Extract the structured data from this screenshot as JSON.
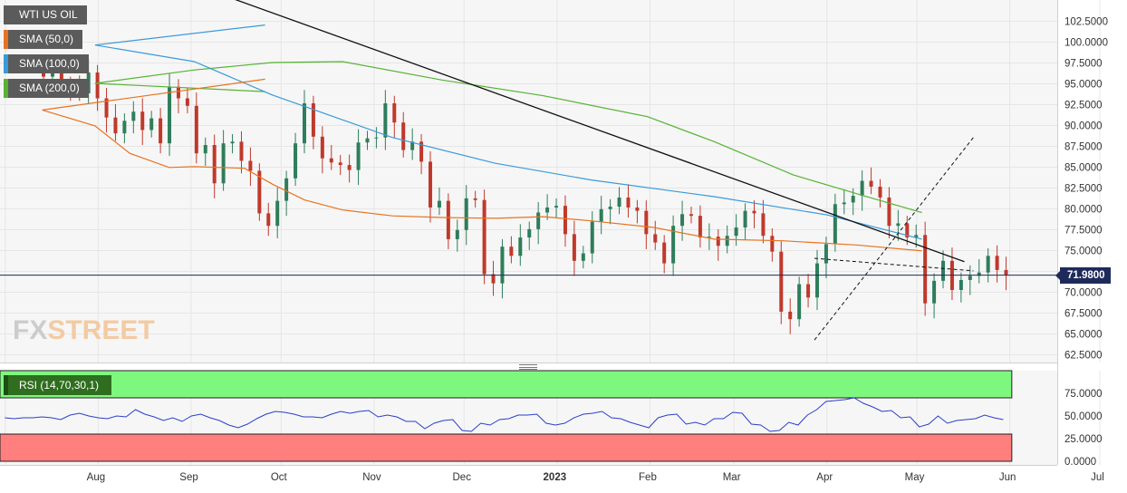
{
  "legend": {
    "instrument": "WTI US OIL",
    "sma50": "SMA (50,0)",
    "sma100": "SMA (100,0)",
    "sma200": "SMA (200,0)",
    "rsi": "RSI (14,70,30,1)"
  },
  "watermark": {
    "part1": "FX",
    "part2": "STREET"
  },
  "last_price": "71.9800",
  "colors": {
    "up_candle": "#2e7d5b",
    "down_candle": "#c0392b",
    "sma50": "#e8731f",
    "sma100": "#3a9ad9",
    "sma200": "#56b334",
    "price_line": "#1e2b5a",
    "rsi_line": "#2a3fc9",
    "rsi_overbought_zone": "#7ef77e",
    "rsi_oversold_zone": "#ff7f7f",
    "grid": "#e6e6e6"
  },
  "chart_data": [
    {
      "type": "candlestick",
      "title": "WTI US OIL",
      "ylim": [
        61.5,
        105
      ],
      "y_ticks": [
        "102.5000",
        "100.0000",
        "97.5000",
        "95.0000",
        "92.5000",
        "90.0000",
        "87.5000",
        "85.0000",
        "82.5000",
        "80.0000",
        "77.5000",
        "75.0000",
        "72.5000",
        "70.0000",
        "67.5000",
        "65.0000",
        "62.5000"
      ],
      "x_ticks": [
        "Aug",
        "Sep",
        "Oct",
        "Nov",
        "Dec",
        "2023",
        "Feb",
        "Mar",
        "Apr",
        "May",
        "Jun",
        "Jul"
      ],
      "close_series": [
        [
          "2022-07-13",
          95.8
        ],
        [
          "2022-07-16",
          96.2
        ],
        [
          "2022-07-19",
          94.9
        ],
        [
          "2022-07-22",
          94.7
        ],
        [
          "2022-07-25",
          93.8
        ],
        [
          "2022-07-28",
          96.3
        ],
        [
          "2022-07-31",
          93.2
        ],
        [
          "2022-08-03",
          90.9
        ],
        [
          "2022-08-06",
          89.0
        ],
        [
          "2022-08-09",
          90.5
        ],
        [
          "2022-08-12",
          91.6
        ],
        [
          "2022-08-15",
          89.4
        ],
        [
          "2022-08-18",
          90.8
        ],
        [
          "2022-08-21",
          87.8
        ],
        [
          "2022-08-24",
          94.6
        ],
        [
          "2022-08-27",
          93.2
        ],
        [
          "2022-08-30",
          92.3
        ],
        [
          "2022-09-02",
          86.6
        ],
        [
          "2022-09-05",
          87.6
        ],
        [
          "2022-09-08",
          83.0
        ],
        [
          "2022-09-11",
          87.8
        ],
        [
          "2022-09-14",
          88.0
        ],
        [
          "2022-09-17",
          85.7
        ],
        [
          "2022-09-20",
          84.5
        ],
        [
          "2022-09-23",
          79.4
        ],
        [
          "2022-09-26",
          77.9
        ],
        [
          "2022-09-29",
          80.9
        ],
        [
          "2022-10-02",
          83.6
        ],
        [
          "2022-10-05",
          87.8
        ],
        [
          "2022-10-08",
          92.6
        ],
        [
          "2022-10-11",
          88.6
        ],
        [
          "2022-10-14",
          86.0
        ],
        [
          "2022-10-17",
          85.5
        ],
        [
          "2022-10-20",
          85.2
        ],
        [
          "2022-10-23",
          84.6
        ],
        [
          "2022-10-26",
          87.9
        ],
        [
          "2022-10-29",
          88.4
        ],
        [
          "2022-11-01",
          88.5
        ],
        [
          "2022-11-04",
          92.6
        ],
        [
          "2022-11-07",
          90.3
        ],
        [
          "2022-11-10",
          87.0
        ],
        [
          "2022-11-13",
          88.0
        ],
        [
          "2022-11-16",
          85.6
        ],
        [
          "2022-11-19",
          80.1
        ],
        [
          "2022-11-22",
          80.9
        ],
        [
          "2022-11-25",
          76.3
        ],
        [
          "2022-11-28",
          77.4
        ],
        [
          "2022-12-01",
          81.2
        ],
        [
          "2022-12-04",
          81.0
        ],
        [
          "2022-12-07",
          72.1
        ],
        [
          "2022-12-10",
          71.0
        ],
        [
          "2022-12-13",
          75.4
        ],
        [
          "2022-12-16",
          74.3
        ],
        [
          "2022-12-19",
          76.5
        ],
        [
          "2022-12-22",
          77.5
        ],
        [
          "2022-12-25",
          79.5
        ],
        [
          "2022-12-28",
          80.1
        ],
        [
          "2022-12-31",
          80.3
        ],
        [
          "2023-01-03",
          76.9
        ],
        [
          "2023-01-06",
          73.7
        ],
        [
          "2023-01-09",
          74.6
        ],
        [
          "2023-01-12",
          78.4
        ],
        [
          "2023-01-15",
          79.9
        ],
        [
          "2023-01-18",
          80.2
        ],
        [
          "2023-01-21",
          81.3
        ],
        [
          "2023-01-24",
          80.1
        ],
        [
          "2023-01-27",
          79.7
        ],
        [
          "2023-01-30",
          76.9
        ],
        [
          "2023-02-02",
          75.9
        ],
        [
          "2023-02-05",
          73.4
        ],
        [
          "2023-02-08",
          77.9
        ],
        [
          "2023-02-11",
          79.3
        ],
        [
          "2023-02-14",
          79.1
        ],
        [
          "2023-02-17",
          76.5
        ],
        [
          "2023-02-20",
          76.6
        ],
        [
          "2023-02-23",
          75.5
        ],
        [
          "2023-02-26",
          76.7
        ],
        [
          "2023-03-01",
          77.7
        ],
        [
          "2023-03-04",
          79.7
        ],
        [
          "2023-03-07",
          79.4
        ],
        [
          "2023-03-10",
          76.7
        ],
        [
          "2023-03-13",
          74.8
        ],
        [
          "2023-03-16",
          67.6
        ],
        [
          "2023-03-19",
          66.7
        ],
        [
          "2023-03-22",
          70.9
        ],
        [
          "2023-03-25",
          69.3
        ],
        [
          "2023-03-28",
          73.4
        ],
        [
          "2023-03-31",
          75.7
        ],
        [
          "2023-04-03",
          80.5
        ],
        [
          "2023-04-06",
          80.7
        ],
        [
          "2023-04-09",
          81.5
        ],
        [
          "2023-04-12",
          83.3
        ],
        [
          "2023-04-15",
          82.6
        ],
        [
          "2023-04-18",
          81.3
        ],
        [
          "2023-04-21",
          77.9
        ],
        [
          "2023-04-24",
          78.2
        ],
        [
          "2023-04-27",
          76.5
        ],
        [
          "2023-04-30",
          76.8
        ],
        [
          "2023-05-03",
          68.6
        ],
        [
          "2023-05-06",
          71.3
        ],
        [
          "2023-05-09",
          73.7
        ],
        [
          "2023-05-12",
          70.2
        ],
        [
          "2023-05-15",
          71.4
        ],
        [
          "2023-05-18",
          71.9
        ],
        [
          "2023-05-21",
          72.3
        ],
        [
          "2023-05-24",
          74.3
        ],
        [
          "2023-05-27",
          72.6
        ],
        [
          "2023-05-30",
          71.98
        ]
      ],
      "sma50": [
        [
          86.8,
          95.5
        ],
        [
          12.5,
          91.8
        ],
        [
          30.1,
          89.9
        ],
        [
          41.7,
          86.6
        ],
        [
          54.8,
          84.9
        ],
        [
          63.2,
          85.0
        ],
        [
          80.0,
          84.8
        ],
        [
          89.2,
          82.9
        ],
        [
          100.0,
          81.0
        ],
        [
          112.7,
          79.8
        ],
        [
          129.2,
          79.1
        ],
        [
          145.8,
          78.9
        ],
        [
          163.6,
          78.8
        ],
        [
          179.7,
          79.0
        ],
        [
          195.6,
          78.5
        ],
        [
          216.5,
          77.7
        ],
        [
          236.6,
          76.3
        ],
        [
          259.5,
          76.1
        ],
        [
          283.9,
          75.6
        ],
        [
          305.8,
          74.9
        ]
      ],
      "sma100": [
        [
          86.8,
          102.0
        ],
        [
          30.1,
          99.6
        ],
        [
          63.2,
          97.6
        ],
        [
          89.2,
          93.6
        ],
        [
          129.2,
          88.5
        ],
        [
          163.6,
          85.4
        ],
        [
          195.6,
          83.4
        ],
        [
          236.6,
          81.4
        ],
        [
          274.3,
          79.2
        ],
        [
          305.8,
          76.3
        ]
      ],
      "sma200": [
        [
          86.8,
          94.0
        ],
        [
          30.1,
          95.0
        ],
        [
          63.2,
          96.6
        ],
        [
          89.2,
          97.5
        ],
        [
          112.7,
          97.6
        ],
        [
          145.8,
          95.4
        ],
        [
          179.7,
          93.5
        ],
        [
          214.3,
          91.0
        ],
        [
          236.6,
          88.0
        ],
        [
          263.0,
          84.0
        ],
        [
          285.6,
          81.6
        ],
        [
          305.8,
          79.5
        ]
      ],
      "trendlines": [
        {
          "name": "long-term resistance",
          "style": "solid",
          "x": [
            0.0,
            320.0
          ],
          "y": [
            115.0,
            73.6
          ]
        },
        {
          "name": "triangle upper",
          "style": "dashed",
          "x": [
            270.0,
            323.0
          ],
          "y": [
            74.0,
            72.5
          ]
        },
        {
          "name": "triangle lower",
          "style": "dashed",
          "x": [
            270.0,
            323.0
          ],
          "y": [
            64.2,
            88.5
          ]
        }
      ]
    },
    {
      "type": "line",
      "title": "RSI (14,70,30,1)",
      "ylim": [
        0,
        100
      ],
      "y_ticks": [
        "75.0000",
        "50.0000",
        "25.0000",
        "0.0000"
      ],
      "overbought": 70,
      "oversold": 30,
      "values": [
        48,
        47,
        48,
        48,
        49,
        48,
        46,
        51,
        53,
        50,
        48,
        47,
        50,
        49,
        57,
        52,
        49,
        45,
        48,
        44,
        50,
        52,
        48,
        45,
        40,
        37,
        41,
        47,
        52,
        55,
        54,
        52,
        49,
        49,
        48,
        52,
        55,
        53,
        55,
        56,
        49,
        51,
        49,
        44,
        44,
        36,
        42,
        45,
        46,
        34,
        33,
        42,
        40,
        46,
        47,
        51,
        51,
        52,
        42,
        40,
        42,
        48,
        52,
        53,
        55,
        48,
        47,
        43,
        40,
        37,
        48,
        51,
        52,
        41,
        43,
        40,
        47,
        47,
        54,
        53,
        41,
        40,
        33,
        34,
        43,
        40,
        51,
        57,
        66,
        67,
        68,
        70,
        64,
        60,
        55,
        56,
        48,
        49,
        38,
        41,
        50,
        42,
        45,
        46,
        47,
        51,
        48,
        46
      ]
    }
  ]
}
